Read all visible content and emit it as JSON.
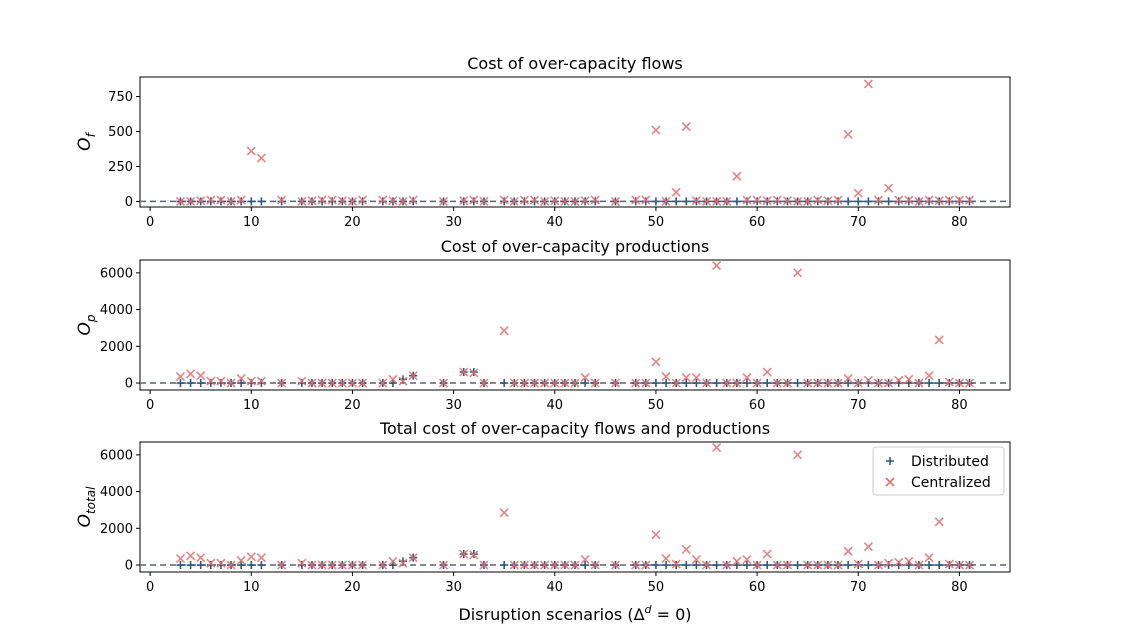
{
  "figure": {
    "xlabel": "Disruption scenarios (Δ",
    "xlabel_sup": "d",
    "xlabel_tail": " = 0)"
  },
  "legend": {
    "distributed": "Distributed",
    "centralized": "Centralized"
  },
  "colors": {
    "distributed": "#2e5a7d",
    "centralized": "#e46c6f",
    "zero_line": "#5a6370"
  },
  "chart_data": [
    {
      "type": "scatter",
      "title": "Cost of over-capacity flows",
      "ylabel": "O",
      "ylabel_sub": "f",
      "xlim": [
        -1,
        85
      ],
      "ylim": [
        -40,
        890
      ],
      "xticks": [
        0,
        10,
        20,
        30,
        40,
        50,
        60,
        70,
        80
      ],
      "yticks": [
        0,
        250,
        500,
        750
      ],
      "series": [
        {
          "name": "Distributed",
          "marker": "plus",
          "x": [
            3,
            4,
            5,
            6,
            7,
            8,
            9,
            10,
            11,
            13,
            15,
            16,
            17,
            18,
            19,
            20,
            21,
            23,
            24,
            25,
            26,
            29,
            31,
            32,
            33,
            35,
            36,
            37,
            38,
            39,
            40,
            41,
            42,
            43,
            44,
            46,
            48,
            49,
            50,
            51,
            52,
            53,
            54,
            55,
            56,
            57,
            58,
            59,
            60,
            61,
            62,
            63,
            64,
            65,
            66,
            67,
            68,
            69,
            70,
            71,
            72,
            73,
            74,
            75,
            76,
            77,
            78,
            79,
            80,
            81
          ],
          "y": [
            0,
            0,
            0,
            0,
            0,
            0,
            0,
            0,
            0,
            0,
            0,
            0,
            0,
            0,
            0,
            0,
            0,
            0,
            0,
            0,
            0,
            0,
            0,
            0,
            0,
            0,
            0,
            0,
            0,
            0,
            0,
            0,
            0,
            0,
            0,
            0,
            0,
            0,
            0,
            0,
            0,
            0,
            0,
            0,
            0,
            0,
            0,
            0,
            0,
            0,
            0,
            0,
            0,
            0,
            0,
            0,
            0,
            0,
            0,
            0,
            0,
            0,
            0,
            0,
            0,
            0,
            0,
            0,
            0,
            0
          ]
        },
        {
          "name": "Centralized",
          "marker": "x",
          "x": [
            3,
            4,
            5,
            6,
            7,
            8,
            9,
            10,
            11,
            13,
            15,
            16,
            17,
            18,
            19,
            20,
            21,
            23,
            24,
            25,
            26,
            29,
            31,
            32,
            33,
            35,
            36,
            37,
            38,
            39,
            40,
            41,
            42,
            43,
            44,
            46,
            48,
            49,
            50,
            51,
            52,
            53,
            54,
            55,
            56,
            57,
            58,
            59,
            60,
            61,
            62,
            63,
            64,
            65,
            66,
            67,
            68,
            69,
            70,
            71,
            72,
            73,
            74,
            75,
            76,
            77,
            78,
            79,
            80,
            81
          ],
          "y": [
            0,
            0,
            5,
            10,
            10,
            0,
            10,
            360,
            310,
            10,
            0,
            5,
            10,
            10,
            5,
            0,
            10,
            10,
            5,
            0,
            10,
            0,
            5,
            10,
            0,
            10,
            0,
            10,
            10,
            0,
            5,
            0,
            0,
            5,
            10,
            0,
            10,
            10,
            510,
            0,
            65,
            535,
            5,
            0,
            0,
            0,
            180,
            10,
            10,
            5,
            10,
            5,
            0,
            0,
            10,
            5,
            10,
            480,
            60,
            840,
            10,
            95,
            10,
            10,
            0,
            10,
            5,
            10,
            10,
            10
          ]
        }
      ]
    },
    {
      "type": "scatter",
      "title": "Cost of over-capacity productions",
      "ylabel": "O",
      "ylabel_sub": "p",
      "xlim": [
        -1,
        85
      ],
      "ylim": [
        -380,
        6700
      ],
      "xticks": [
        0,
        10,
        20,
        30,
        40,
        50,
        60,
        70,
        80
      ],
      "yticks": [
        0,
        2000,
        4000,
        6000
      ],
      "series": [
        {
          "name": "Distributed",
          "marker": "plus",
          "x": [
            3,
            4,
            5,
            6,
            7,
            8,
            9,
            10,
            11,
            13,
            15,
            16,
            17,
            18,
            19,
            20,
            21,
            23,
            24,
            25,
            26,
            29,
            31,
            32,
            33,
            35,
            36,
            37,
            38,
            39,
            40,
            41,
            42,
            43,
            44,
            46,
            48,
            49,
            50,
            51,
            52,
            53,
            54,
            55,
            56,
            57,
            58,
            59,
            60,
            61,
            62,
            63,
            64,
            65,
            66,
            67,
            68,
            69,
            70,
            71,
            72,
            73,
            74,
            75,
            76,
            77,
            78,
            79,
            80,
            81
          ],
          "y": [
            0,
            0,
            0,
            0,
            0,
            0,
            0,
            0,
            0,
            0,
            0,
            0,
            0,
            0,
            0,
            0,
            0,
            0,
            0,
            200,
            400,
            0,
            600,
            600,
            0,
            0,
            0,
            0,
            0,
            0,
            0,
            0,
            0,
            0,
            0,
            0,
            0,
            0,
            0,
            0,
            0,
            0,
            0,
            0,
            0,
            0,
            0,
            0,
            0,
            0,
            0,
            0,
            0,
            0,
            0,
            0,
            0,
            0,
            0,
            0,
            0,
            0,
            0,
            0,
            0,
            0,
            0,
            0,
            0,
            0
          ]
        },
        {
          "name": "Centralized",
          "marker": "x",
          "x": [
            3,
            4,
            5,
            6,
            7,
            8,
            9,
            10,
            11,
            13,
            15,
            16,
            17,
            18,
            19,
            20,
            21,
            23,
            24,
            25,
            26,
            29,
            31,
            32,
            33,
            35,
            36,
            37,
            38,
            39,
            40,
            41,
            42,
            43,
            44,
            46,
            48,
            49,
            50,
            51,
            52,
            53,
            54,
            55,
            56,
            57,
            58,
            59,
            60,
            61,
            62,
            63,
            64,
            65,
            66,
            67,
            68,
            69,
            70,
            71,
            72,
            73,
            74,
            75,
            76,
            77,
            78,
            79,
            80,
            81
          ],
          "y": [
            350,
            500,
            400,
            100,
            100,
            0,
            250,
            100,
            100,
            0,
            100,
            0,
            0,
            0,
            0,
            0,
            0,
            0,
            200,
            100,
            400,
            0,
            600,
            550,
            0,
            2850,
            0,
            0,
            0,
            0,
            0,
            0,
            0,
            300,
            0,
            0,
            0,
            0,
            1150,
            350,
            0,
            300,
            300,
            0,
            6400,
            0,
            0,
            300,
            0,
            600,
            0,
            0,
            6000,
            0,
            0,
            0,
            0,
            250,
            0,
            150,
            0,
            0,
            150,
            200,
            0,
            400,
            2350,
            50,
            0,
            0
          ]
        }
      ]
    },
    {
      "type": "scatter",
      "title": "Total cost of over-capacity flows and productions",
      "ylabel": "O",
      "ylabel_sub": "total",
      "xlim": [
        -1,
        85
      ],
      "ylim": [
        -380,
        6700
      ],
      "xticks": [
        0,
        10,
        20,
        30,
        40,
        50,
        60,
        70,
        80
      ],
      "yticks": [
        0,
        2000,
        4000,
        6000
      ],
      "legend": "top-right",
      "series": [
        {
          "name": "Distributed",
          "marker": "plus",
          "x": [
            3,
            4,
            5,
            6,
            7,
            8,
            9,
            10,
            11,
            13,
            15,
            16,
            17,
            18,
            19,
            20,
            21,
            23,
            24,
            25,
            26,
            29,
            31,
            32,
            33,
            35,
            36,
            37,
            38,
            39,
            40,
            41,
            42,
            43,
            44,
            46,
            48,
            49,
            50,
            51,
            52,
            53,
            54,
            55,
            56,
            57,
            58,
            59,
            60,
            61,
            62,
            63,
            64,
            65,
            66,
            67,
            68,
            69,
            70,
            71,
            72,
            73,
            74,
            75,
            76,
            77,
            78,
            79,
            80,
            81
          ],
          "y": [
            0,
            0,
            0,
            0,
            0,
            0,
            0,
            0,
            0,
            0,
            0,
            0,
            0,
            0,
            0,
            0,
            0,
            0,
            0,
            200,
            400,
            0,
            600,
            600,
            0,
            0,
            0,
            0,
            0,
            0,
            0,
            0,
            0,
            0,
            0,
            0,
            0,
            0,
            0,
            0,
            0,
            0,
            0,
            0,
            0,
            0,
            0,
            0,
            0,
            0,
            0,
            0,
            0,
            0,
            0,
            0,
            0,
            0,
            0,
            0,
            0,
            0,
            0,
            0,
            0,
            0,
            0,
            0,
            0,
            0
          ]
        },
        {
          "name": "Centralized",
          "marker": "x",
          "x": [
            3,
            4,
            5,
            6,
            7,
            8,
            9,
            10,
            11,
            13,
            15,
            16,
            17,
            18,
            19,
            20,
            21,
            23,
            24,
            25,
            26,
            29,
            31,
            32,
            33,
            35,
            36,
            37,
            38,
            39,
            40,
            41,
            42,
            43,
            44,
            46,
            48,
            49,
            50,
            51,
            52,
            53,
            54,
            55,
            56,
            57,
            58,
            59,
            60,
            61,
            62,
            63,
            64,
            65,
            66,
            67,
            68,
            69,
            70,
            71,
            72,
            73,
            74,
            75,
            76,
            77,
            78,
            79,
            80,
            81
          ],
          "y": [
            350,
            500,
            400,
            100,
            100,
            0,
            250,
            450,
            400,
            0,
            100,
            0,
            0,
            0,
            0,
            0,
            0,
            0,
            200,
            100,
            400,
            0,
            600,
            550,
            0,
            2850,
            0,
            0,
            0,
            0,
            0,
            0,
            0,
            300,
            0,
            0,
            0,
            0,
            1650,
            350,
            50,
            850,
            300,
            0,
            6400,
            0,
            200,
            300,
            0,
            600,
            0,
            0,
            6000,
            0,
            0,
            0,
            0,
            750,
            50,
            1000,
            0,
            100,
            150,
            200,
            0,
            400,
            2350,
            50,
            0,
            0
          ]
        }
      ]
    }
  ]
}
